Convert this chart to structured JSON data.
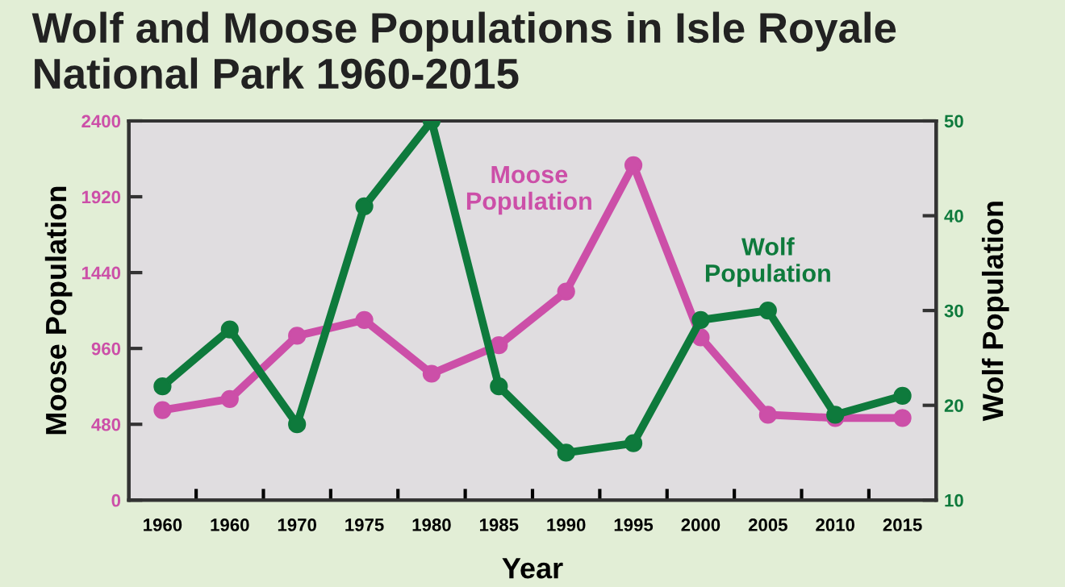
{
  "chart_data": {
    "type": "line",
    "title": "Wolf and Moose Populations in Isle Royale\nNational Park 1960-2015",
    "xlabel": "Year",
    "ylabel": "Moose Population",
    "y2label": "Wolf Population",
    "categories": [
      "1960",
      "1960",
      "1970",
      "1975",
      "1980",
      "1985",
      "1990",
      "1995",
      "2000",
      "2005",
      "2010",
      "2015"
    ],
    "series": [
      {
        "name": "Moose\nPopulation",
        "color": "#cc4fa8",
        "values": [
          570,
          640,
          1040,
          1140,
          800,
          980,
          1320,
          2120,
          1030,
          540,
          520,
          520
        ]
      },
      {
        "name": "Wolf\nPopulation",
        "color": "#0e7a3c",
        "axis": "y2",
        "values": [
          22,
          28,
          18,
          41,
          50,
          22,
          15,
          16,
          29,
          30,
          19,
          21
        ]
      }
    ],
    "ylim": [
      0,
      2400
    ],
    "yticks": [
      0,
      480,
      960,
      1440,
      1920,
      2400
    ],
    "y2lim": [
      10,
      50
    ],
    "y2ticks": [
      10,
      20,
      30,
      40,
      50
    ],
    "grid": false,
    "marker": "circle",
    "line_style": "solid"
  }
}
